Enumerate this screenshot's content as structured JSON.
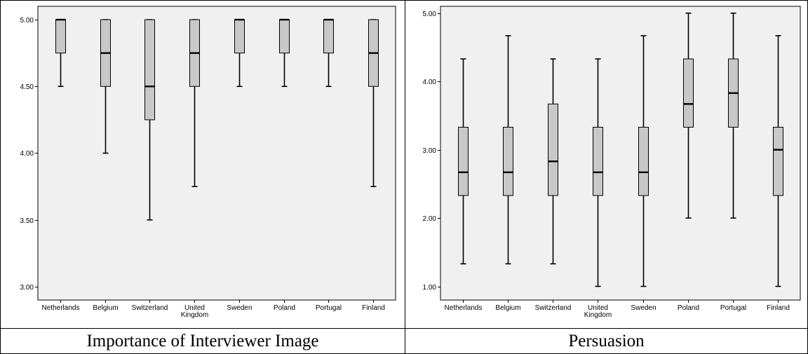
{
  "captions": {
    "left": "Importance of Interviewer Image",
    "right": "Persuasion"
  },
  "chart_data": [
    {
      "type": "boxplot",
      "title": "",
      "xlabel": "",
      "ylabel": "",
      "ylim": [
        2.9,
        5.1
      ],
      "yticks": [
        3.0,
        3.5,
        4.0,
        4.5,
        5.0
      ],
      "ytick_labels": [
        "3.00",
        "3.50",
        "4.00",
        "4.50",
        "5.00"
      ],
      "categories": [
        "Netherlands",
        "Belgium",
        "Switzerland",
        "United Kingdom",
        "Sweden",
        "Poland",
        "Portugal",
        "Finland"
      ],
      "category_labels": [
        [
          "Netherlands"
        ],
        [
          "Belgium"
        ],
        [
          "Switzerland"
        ],
        [
          "United",
          "Kingdom"
        ],
        [
          "Sweden"
        ],
        [
          "Poland"
        ],
        [
          "Portugal"
        ],
        [
          "Finland"
        ]
      ],
      "boxes": [
        {
          "min": 4.5,
          "q1": 4.75,
          "median": 5.0,
          "q3": 5.0,
          "max": 5.0
        },
        {
          "min": 4.0,
          "q1": 4.5,
          "median": 4.75,
          "q3": 5.0,
          "max": 5.0
        },
        {
          "min": 3.5,
          "q1": 4.25,
          "median": 4.5,
          "q3": 5.0,
          "max": 5.0
        },
        {
          "min": 3.75,
          "q1": 4.5,
          "median": 4.75,
          "q3": 5.0,
          "max": 5.0
        },
        {
          "min": 4.5,
          "q1": 4.75,
          "median": 5.0,
          "q3": 5.0,
          "max": 5.0
        },
        {
          "min": 4.5,
          "q1": 4.75,
          "median": 5.0,
          "q3": 5.0,
          "max": 5.0
        },
        {
          "min": 4.5,
          "q1": 4.75,
          "median": 5.0,
          "q3": 5.0,
          "max": 5.0
        },
        {
          "min": 3.75,
          "q1": 4.5,
          "median": 4.75,
          "q3": 5.0,
          "max": 5.0
        }
      ],
      "box_color": "#c8c8c8",
      "background_color": "#f0f0f0",
      "grid": false
    },
    {
      "type": "boxplot",
      "title": "",
      "xlabel": "",
      "ylabel": "",
      "ylim": [
        0.8,
        5.1
      ],
      "yticks": [
        1.0,
        2.0,
        3.0,
        4.0,
        5.0
      ],
      "ytick_labels": [
        "1.00",
        "2.00",
        "3.00",
        "4.00",
        "5.00"
      ],
      "categories": [
        "Netherlands",
        "Belgium",
        "Switzerland",
        "United Kingdom",
        "Sweden",
        "Poland",
        "Portugal",
        "Finland"
      ],
      "category_labels": [
        [
          "Netherlands"
        ],
        [
          "Belgium"
        ],
        [
          "Switzerland"
        ],
        [
          "United",
          "Kingdom"
        ],
        [
          "Sweden"
        ],
        [
          "Poland"
        ],
        [
          "Portugal"
        ],
        [
          "Finland"
        ]
      ],
      "boxes": [
        {
          "min": 1.33,
          "q1": 2.33,
          "median": 2.67,
          "q3": 3.33,
          "max": 4.33
        },
        {
          "min": 1.33,
          "q1": 2.33,
          "median": 2.67,
          "q3": 3.33,
          "max": 4.67
        },
        {
          "min": 1.33,
          "q1": 2.33,
          "median": 2.83,
          "q3": 3.67,
          "max": 4.33
        },
        {
          "min": 1.0,
          "q1": 2.33,
          "median": 2.67,
          "q3": 3.33,
          "max": 4.33
        },
        {
          "min": 1.0,
          "q1": 2.33,
          "median": 2.67,
          "q3": 3.33,
          "max": 4.67
        },
        {
          "min": 2.0,
          "q1": 3.33,
          "median": 3.67,
          "q3": 4.33,
          "max": 5.0
        },
        {
          "min": 2.0,
          "q1": 3.33,
          "median": 3.83,
          "q3": 4.33,
          "max": 5.0
        },
        {
          "min": 1.0,
          "q1": 2.33,
          "median": 3.0,
          "q3": 3.33,
          "max": 4.67
        }
      ],
      "box_color": "#c8c8c8",
      "background_color": "#f0f0f0",
      "grid": false
    }
  ]
}
